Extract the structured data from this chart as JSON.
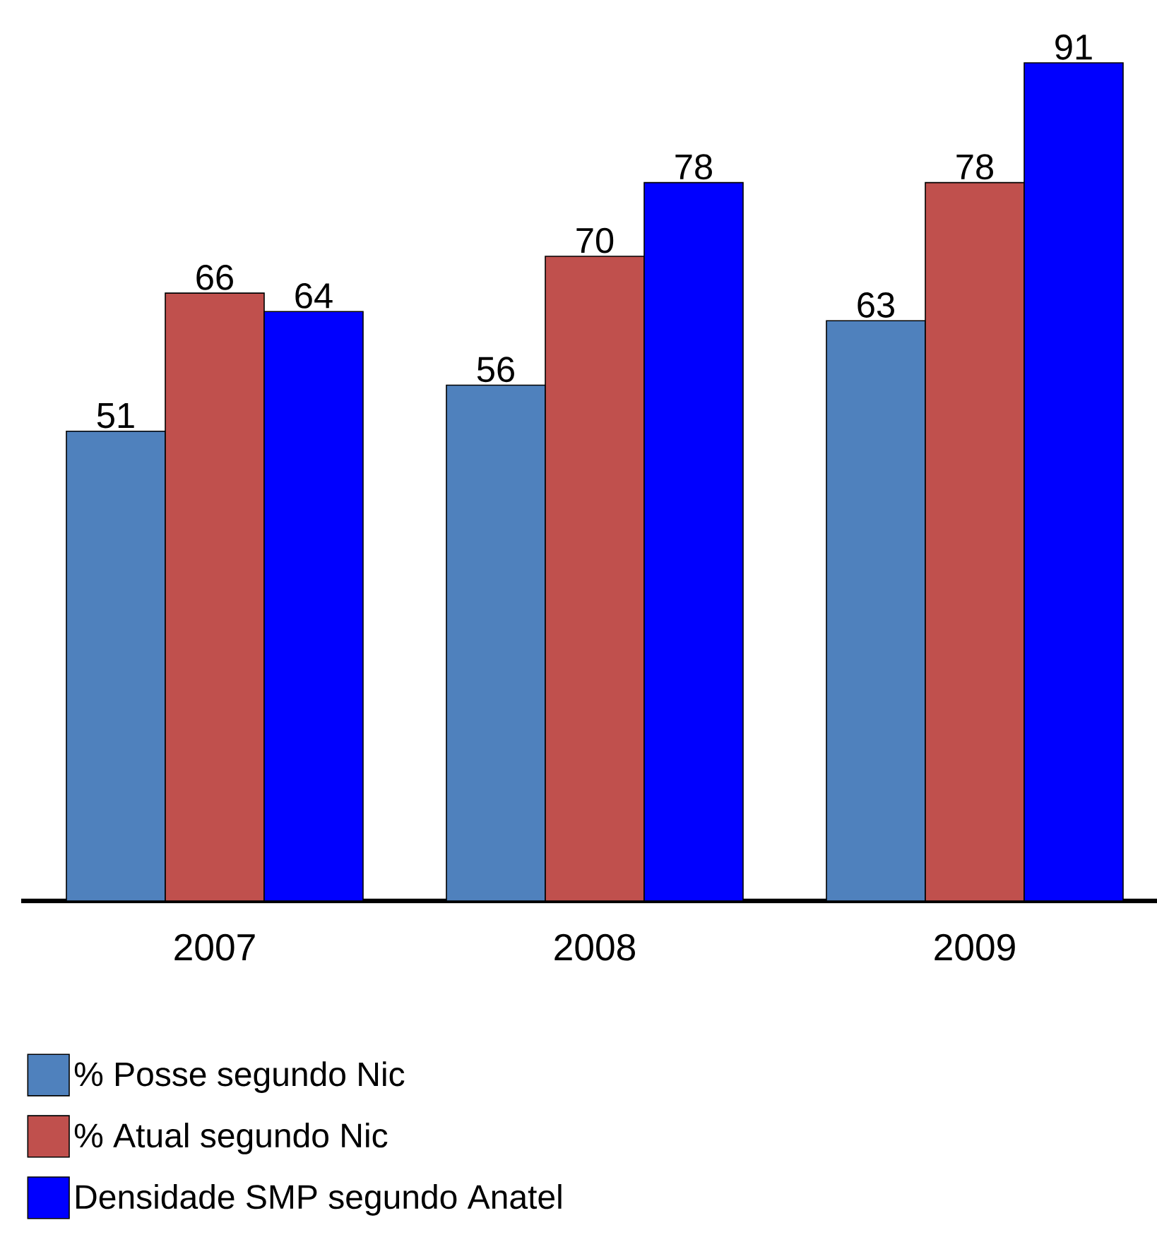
{
  "chart_data": {
    "type": "bar",
    "categories": [
      "2007",
      "2008",
      "2009"
    ],
    "series": [
      {
        "name": "% Posse segundo Nic",
        "color": "#4f81bd",
        "values": [
          51,
          56,
          63
        ]
      },
      {
        "name": "% Atual segundo Nic",
        "color": "#c0504d",
        "values": [
          66,
          70,
          78
        ]
      },
      {
        "name": "Densidade SMP segundo Anatel",
        "color": "#0000ff",
        "values": [
          64,
          78,
          91
        ]
      }
    ],
    "data_labels": true,
    "legend": "bottom"
  }
}
